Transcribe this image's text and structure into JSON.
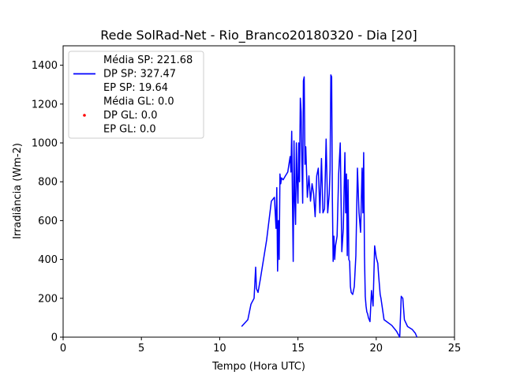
{
  "chart_data": {
    "type": "line",
    "title": "Rede SolRad-Net - Rio_Branco20180320 - Dia [20]",
    "xlabel": "Tempo (Hora UTC)",
    "ylabel": "Irradiância (Wm-2)",
    "xlim": [
      0,
      25
    ],
    "ylim": [
      0,
      1500
    ],
    "xticks": [
      0,
      5,
      10,
      15,
      20,
      25
    ],
    "yticks": [
      0,
      200,
      400,
      600,
      800,
      1000,
      1200,
      1400
    ],
    "grid": false,
    "legend_position": "top-left",
    "series": [
      {
        "name": "SP",
        "legend_lines": [
          "Média SP: 221.68",
          "DP SP: 327.47",
          "EP SP: 19.64"
        ],
        "color": "#0000ff",
        "style": "line",
        "x": [
          11.4,
          11.8,
          12.0,
          12.2,
          12.3,
          12.35,
          12.45,
          12.6,
          13.0,
          13.3,
          13.5,
          13.6,
          13.65,
          13.7,
          13.75,
          13.8,
          13.85,
          13.9,
          13.95,
          14.05,
          14.2,
          14.35,
          14.5,
          14.55,
          14.6,
          14.65,
          14.7,
          14.75,
          14.8,
          14.85,
          14.9,
          14.95,
          15.0,
          15.05,
          15.1,
          15.15,
          15.2,
          15.25,
          15.3,
          15.35,
          15.4,
          15.45,
          15.5,
          15.6,
          15.7,
          15.8,
          15.9,
          16.0,
          16.1,
          16.2,
          16.3,
          16.4,
          16.5,
          16.6,
          16.7,
          16.8,
          16.9,
          17.0,
          17.05,
          17.1,
          17.15,
          17.2,
          17.25,
          17.3,
          17.35,
          17.4,
          17.5,
          17.6,
          17.7,
          17.8,
          17.9,
          18.0,
          18.05,
          18.1,
          18.15,
          18.2,
          18.25,
          18.3,
          18.35,
          18.4,
          18.5,
          18.6,
          18.7,
          18.8,
          18.9,
          19.0,
          19.1,
          19.15,
          19.2,
          19.25,
          19.3,
          19.35,
          19.4,
          19.45,
          19.5,
          19.6,
          19.7,
          19.8,
          19.9,
          20.0,
          20.1,
          20.15,
          20.2,
          20.25,
          20.3,
          20.5,
          21.0,
          21.3,
          21.5,
          21.6,
          21.7,
          21.8,
          22.0,
          22.3,
          22.5,
          22.6
        ],
        "y": [
          55,
          90,
          170,
          200,
          360,
          250,
          230,
          300,
          500,
          700,
          720,
          560,
          770,
          340,
          600,
          400,
          840,
          790,
          820,
          810,
          830,
          850,
          930,
          850,
          1060,
          690,
          390,
          1010,
          700,
          580,
          1000,
          800,
          690,
          1000,
          800,
          1230,
          1160,
          900,
          690,
          1320,
          1340,
          890,
          980,
          720,
          830,
          700,
          790,
          740,
          620,
          830,
          870,
          640,
          920,
          640,
          660,
          1020,
          640,
          740,
          860,
          1350,
          1340,
          720,
          390,
          520,
          400,
          470,
          520,
          840,
          1000,
          440,
          560,
          950,
          640,
          840,
          420,
          810,
          400,
          390,
          260,
          230,
          220,
          260,
          420,
          870,
          640,
          540,
          870,
          640,
          950,
          420,
          210,
          160,
          130,
          120,
          100,
          80,
          240,
          160,
          470,
          410,
          380,
          320,
          270,
          220,
          200,
          90,
          60,
          30,
          0,
          210,
          200,
          90,
          55,
          40,
          20,
          0
        ]
      },
      {
        "name": "GL",
        "legend_lines": [
          "Média GL: 0.0",
          "DP GL: 0.0",
          "EP GL: 0.0"
        ],
        "color": "#ff0000",
        "style": "scatter",
        "x": [],
        "y": []
      }
    ]
  }
}
